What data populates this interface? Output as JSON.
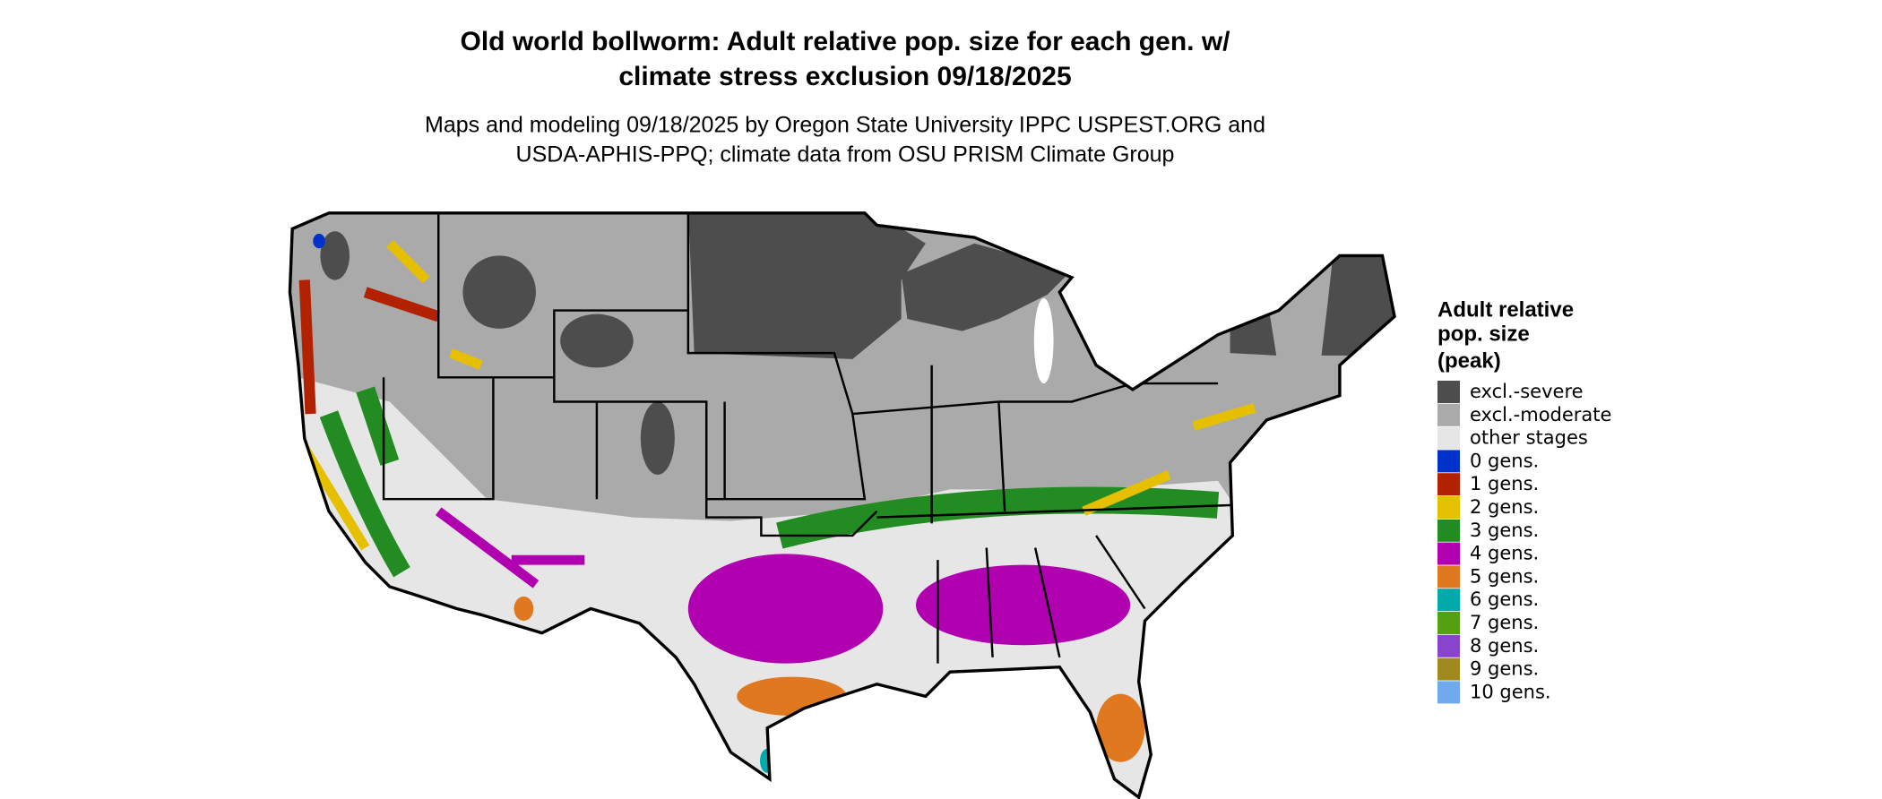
{
  "title": [
    "Old world bollworm: Adult relative pop. size for each gen. w/",
    "climate stress exclusion 09/18/2025"
  ],
  "subtitle": [
    "Maps and modeling 09/18/2025 by Oregon State University IPPC USPEST.ORG and",
    "USDA-APHIS-PPQ; climate data from OSU PRISM Climate Group"
  ],
  "legend": {
    "title": [
      "Adult relative",
      "pop. size",
      "(peak)"
    ],
    "items": [
      {
        "label": "excl.-severe",
        "color": "#4d4d4d"
      },
      {
        "label": "excl.-moderate",
        "color": "#aaaaaa"
      },
      {
        "label": "other stages",
        "color": "#e6e6e6"
      },
      {
        "label": "0 gens.",
        "color": "#0033cc"
      },
      {
        "label": "1 gens.",
        "color": "#b22200"
      },
      {
        "label": "2 gens.",
        "color": "#e6c000"
      },
      {
        "label": "3 gens.",
        "color": "#228b22"
      },
      {
        "label": "4 gens.",
        "color": "#b000b0"
      },
      {
        "label": "5 gens.",
        "color": "#e07820"
      },
      {
        "label": "6 gens.",
        "color": "#00aaaa"
      },
      {
        "label": "7 gens.",
        "color": "#55a010"
      },
      {
        "label": "8 gens.",
        "color": "#8844cc"
      },
      {
        "label": "9 gens.",
        "color": "#a08a20"
      },
      {
        "label": "10 gens.",
        "color": "#70aaee"
      }
    ]
  }
}
